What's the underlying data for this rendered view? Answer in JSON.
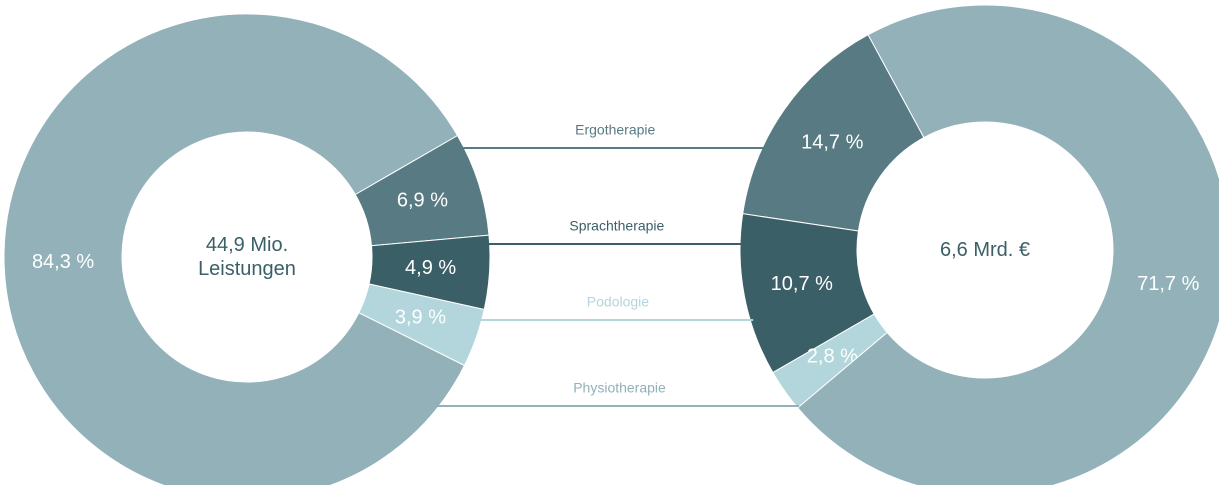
{
  "chart_data": {
    "type": "donut",
    "categories": [
      "Ergotherapie",
      "Sprachtherapie",
      "Podologie",
      "Physiotherapie"
    ],
    "colors": [
      "#587a82",
      "#3b5f67",
      "#b2d6db",
      "#92b1b9"
    ],
    "series": [
      {
        "name": "44,9 Mio. Leistungen",
        "values": [
          6.9,
          4.9,
          3.9,
          84.3
        ],
        "value_labels": [
          "6,9 %",
          "4,9 %",
          "3,9 %",
          "84,3 %"
        ]
      },
      {
        "name": "6,6 Mrd. €",
        "values": [
          14.7,
          10.7,
          2.8,
          71.7
        ],
        "value_labels": [
          "14,7 %",
          "10,7 %",
          "2,8 %",
          "71,7 %"
        ]
      }
    ]
  }
}
